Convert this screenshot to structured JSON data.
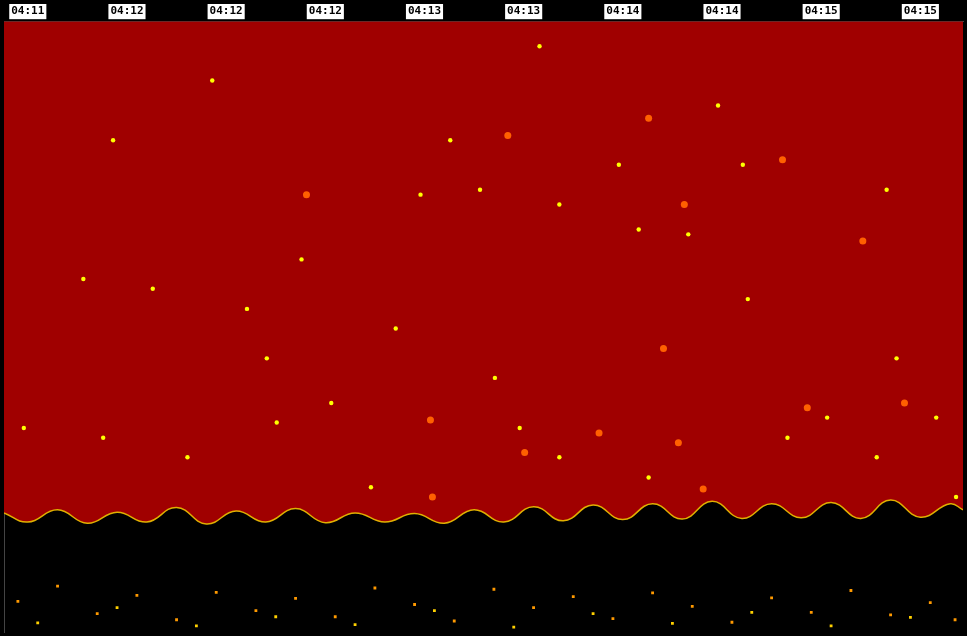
{
  "chart_data": {
    "type": "echogram",
    "xlim": [
      -0.24,
      9.43
    ],
    "xticks": [
      {
        "value": 0,
        "label": "04:11"
      },
      {
        "value": 1,
        "label": "04:12"
      },
      {
        "value": 2,
        "label": "04:12"
      },
      {
        "value": 3,
        "label": "04:12"
      },
      {
        "value": 4,
        "label": "04:13"
      },
      {
        "value": 5,
        "label": "04:13"
      },
      {
        "value": 6,
        "label": "04:14"
      },
      {
        "value": 7,
        "label": "04:14"
      },
      {
        "value": 8,
        "label": "04:15"
      },
      {
        "value": 9,
        "label": "04:15"
      }
    ],
    "ylim": [
      0,
      100
    ],
    "yticks": [
      0,
      100
    ],
    "log": false,
    "grid": false,
    "tick_labels": "x",
    "series": [
      {
        "type": "area",
        "color": "#a00000",
        "x": [
          -0.24,
          0.0,
          0.3,
          0.6,
          0.9,
          1.2,
          1.5,
          1.8,
          2.1,
          2.4,
          2.7,
          3.0,
          3.3,
          3.6,
          3.9,
          4.2,
          4.5,
          4.8,
          5.1,
          5.4,
          5.7,
          6.0,
          6.3,
          6.6,
          6.9,
          7.2,
          7.5,
          7.8,
          8.1,
          8.4,
          8.7,
          9.0,
          9.3,
          9.43
        ],
        "values": [
          80.5,
          82.0,
          80.0,
          82.2,
          80.4,
          82.0,
          79.6,
          82.3,
          80.2,
          82.0,
          79.8,
          82.1,
          80.5,
          82.0,
          80.6,
          82.2,
          80.0,
          82.0,
          79.5,
          81.8,
          79.2,
          81.6,
          79.0,
          81.5,
          78.6,
          81.4,
          79.0,
          81.3,
          78.8,
          81.4,
          78.4,
          81.2,
          79.0,
          80.0
        ]
      },
      {
        "type": "scatter",
        "color": "#ff9a00",
        "marker": "square",
        "x": [
          -0.1,
          0.3,
          0.7,
          1.1,
          1.5,
          1.9,
          2.3,
          2.7,
          3.1,
          3.5,
          3.9,
          4.3,
          4.7,
          5.1,
          5.5,
          5.9,
          6.3,
          6.7,
          7.1,
          7.5,
          7.9,
          8.3,
          8.7,
          9.1,
          9.35
        ],
        "values": [
          95.0,
          92.5,
          97.0,
          94.0,
          98.0,
          93.5,
          96.5,
          94.5,
          97.5,
          92.8,
          95.5,
          98.2,
          93.0,
          96.0,
          94.2,
          97.8,
          93.6,
          95.8,
          98.4,
          94.4,
          96.8,
          93.2,
          97.2,
          95.2,
          98.0
        ]
      },
      {
        "type": "scatter",
        "color": "#ffd000",
        "marker": "square",
        "x": [
          0.1,
          0.9,
          1.7,
          2.5,
          3.3,
          4.1,
          4.9,
          5.7,
          6.5,
          7.3,
          8.1,
          8.9
        ],
        "values": [
          98.5,
          96.0,
          99.0,
          97.5,
          98.8,
          96.5,
          99.2,
          97.0,
          98.6,
          96.8,
          99.0,
          97.6
        ]
      },
      {
        "type": "scatter",
        "color": "#ffff00",
        "marker": "circle",
        "x": [
          2.51,
          0.76,
          1.61,
          3.06,
          3.46,
          3.96,
          5.36,
          6.66,
          7.26,
          8.76,
          4.96,
          5.36,
          8.06,
          8.56,
          1.26,
          2.41,
          4.26,
          6.96,
          1.86,
          5.16,
          5.96,
          4.56,
          0.86,
          0.56,
          2.76,
          3.71,
          4.71,
          6.16,
          7.21,
          9.16,
          -0.04,
          9.36,
          8.66,
          7.66,
          6.26,
          2.21
        ],
        "values": [
          65.7,
          68.2,
          71.4,
          62.5,
          76.3,
          28.4,
          30.0,
          34.9,
          45.5,
          55.2,
          66.6,
          71.4,
          64.9,
          71.4,
          43.8,
          55.2,
          19.5,
          13.8,
          9.7,
          4.1,
          23.5,
          27.6,
          19.5,
          42.2,
          39.0,
          50.3,
          58.4,
          34.1,
          23.5,
          64.9,
          66.6,
          77.9,
          27.6,
          68.2,
          74.7,
          47.1
        ]
      },
      {
        "type": "scatter",
        "color": "#ff6000",
        "marker": "circle",
        "x": [
          2.81,
          6.26,
          4.84,
          6.62,
          7.61,
          8.42,
          4.06,
          4.08,
          5.01,
          6.56,
          6.81,
          8.84,
          5.76,
          7.86,
          6.41
        ],
        "values": [
          28.4,
          15.9,
          18.7,
          30.0,
          22.7,
          36.0,
          65.3,
          77.9,
          70.6,
          69.0,
          76.6,
          62.5,
          67.4,
          63.3,
          53.6
        ]
      }
    ]
  }
}
